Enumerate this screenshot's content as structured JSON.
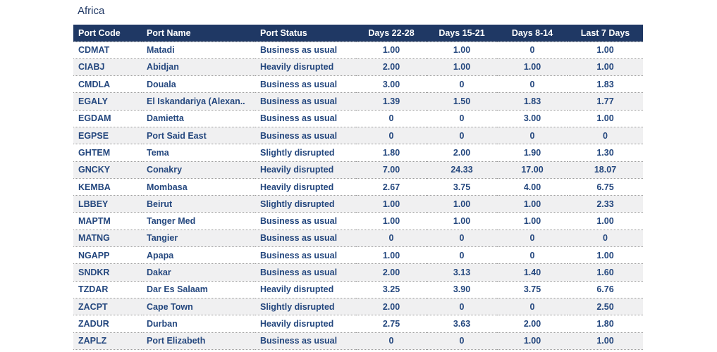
{
  "title": "Africa",
  "colors": {
    "header_bg": "#1F3864",
    "header_text": "#FFFFFF",
    "body_text": "#24477E",
    "title_text": "#203864",
    "row_bg": "#FFFFFF",
    "row_alt_bg": "#F0F0F1",
    "divider": "#9B9B9B"
  },
  "chart_data": {
    "type": "table",
    "title": "Africa",
    "columns": [
      "Port Code",
      "Port Name",
      "Port Status",
      "Days 22-28",
      "Days 15-21",
      "Days 8-14",
      "Last 7 Days"
    ],
    "rows": [
      [
        "CDMAT",
        "Matadi",
        "Business as usual",
        "1.00",
        "1.00",
        "0",
        "1.00"
      ],
      [
        "CIABJ",
        "Abidjan",
        "Heavily disrupted",
        "2.00",
        "1.00",
        "1.00",
        "1.00"
      ],
      [
        "CMDLA",
        "Douala",
        "Business as usual",
        "3.00",
        "0",
        "0",
        "1.83"
      ],
      [
        "EGALY",
        "El Iskandariya (Alexan..",
        "Business as usual",
        "1.39",
        "1.50",
        "1.83",
        "1.77"
      ],
      [
        "EGDAM",
        "Damietta",
        "Business as usual",
        "0",
        "0",
        "3.00",
        "1.00"
      ],
      [
        "EGPSE",
        "Port Said East",
        "Business as usual",
        "0",
        "0",
        "0",
        "0"
      ],
      [
        "GHTEM",
        "Tema",
        "Slightly disrupted",
        "1.80",
        "2.00",
        "1.90",
        "1.30"
      ],
      [
        "GNCKY",
        "Conakry",
        "Heavily disrupted",
        "7.00",
        "24.33",
        "17.00",
        "18.07"
      ],
      [
        "KEMBA",
        "Mombasa",
        "Heavily disrupted",
        "2.67",
        "3.75",
        "4.00",
        "6.75"
      ],
      [
        "LBBEY",
        "Beirut",
        "Slightly disrupted",
        "1.00",
        "1.00",
        "1.00",
        "2.33"
      ],
      [
        "MAPTM",
        "Tanger Med",
        "Business as usual",
        "1.00",
        "1.00",
        "1.00",
        "1.00"
      ],
      [
        "MATNG",
        "Tangier",
        "Business as usual",
        "0",
        "0",
        "0",
        "0"
      ],
      [
        "NGAPP",
        "Apapa",
        "Business as usual",
        "1.00",
        "0",
        "0",
        "1.00"
      ],
      [
        "SNDKR",
        "Dakar",
        "Business as usual",
        "2.00",
        "3.13",
        "1.40",
        "1.60"
      ],
      [
        "TZDAR",
        "Dar Es Salaam",
        "Heavily disrupted",
        "3.25",
        "3.90",
        "3.75",
        "6.76"
      ],
      [
        "ZACPT",
        "Cape Town",
        "Slightly disrupted",
        "2.00",
        "0",
        "0",
        "2.50"
      ],
      [
        "ZADUR",
        "Durban",
        "Heavily disrupted",
        "2.75",
        "3.63",
        "2.00",
        "1.80"
      ],
      [
        "ZAPLZ",
        "Port Elizabeth",
        "Business as usual",
        "0",
        "0",
        "1.00",
        "1.00"
      ]
    ]
  }
}
